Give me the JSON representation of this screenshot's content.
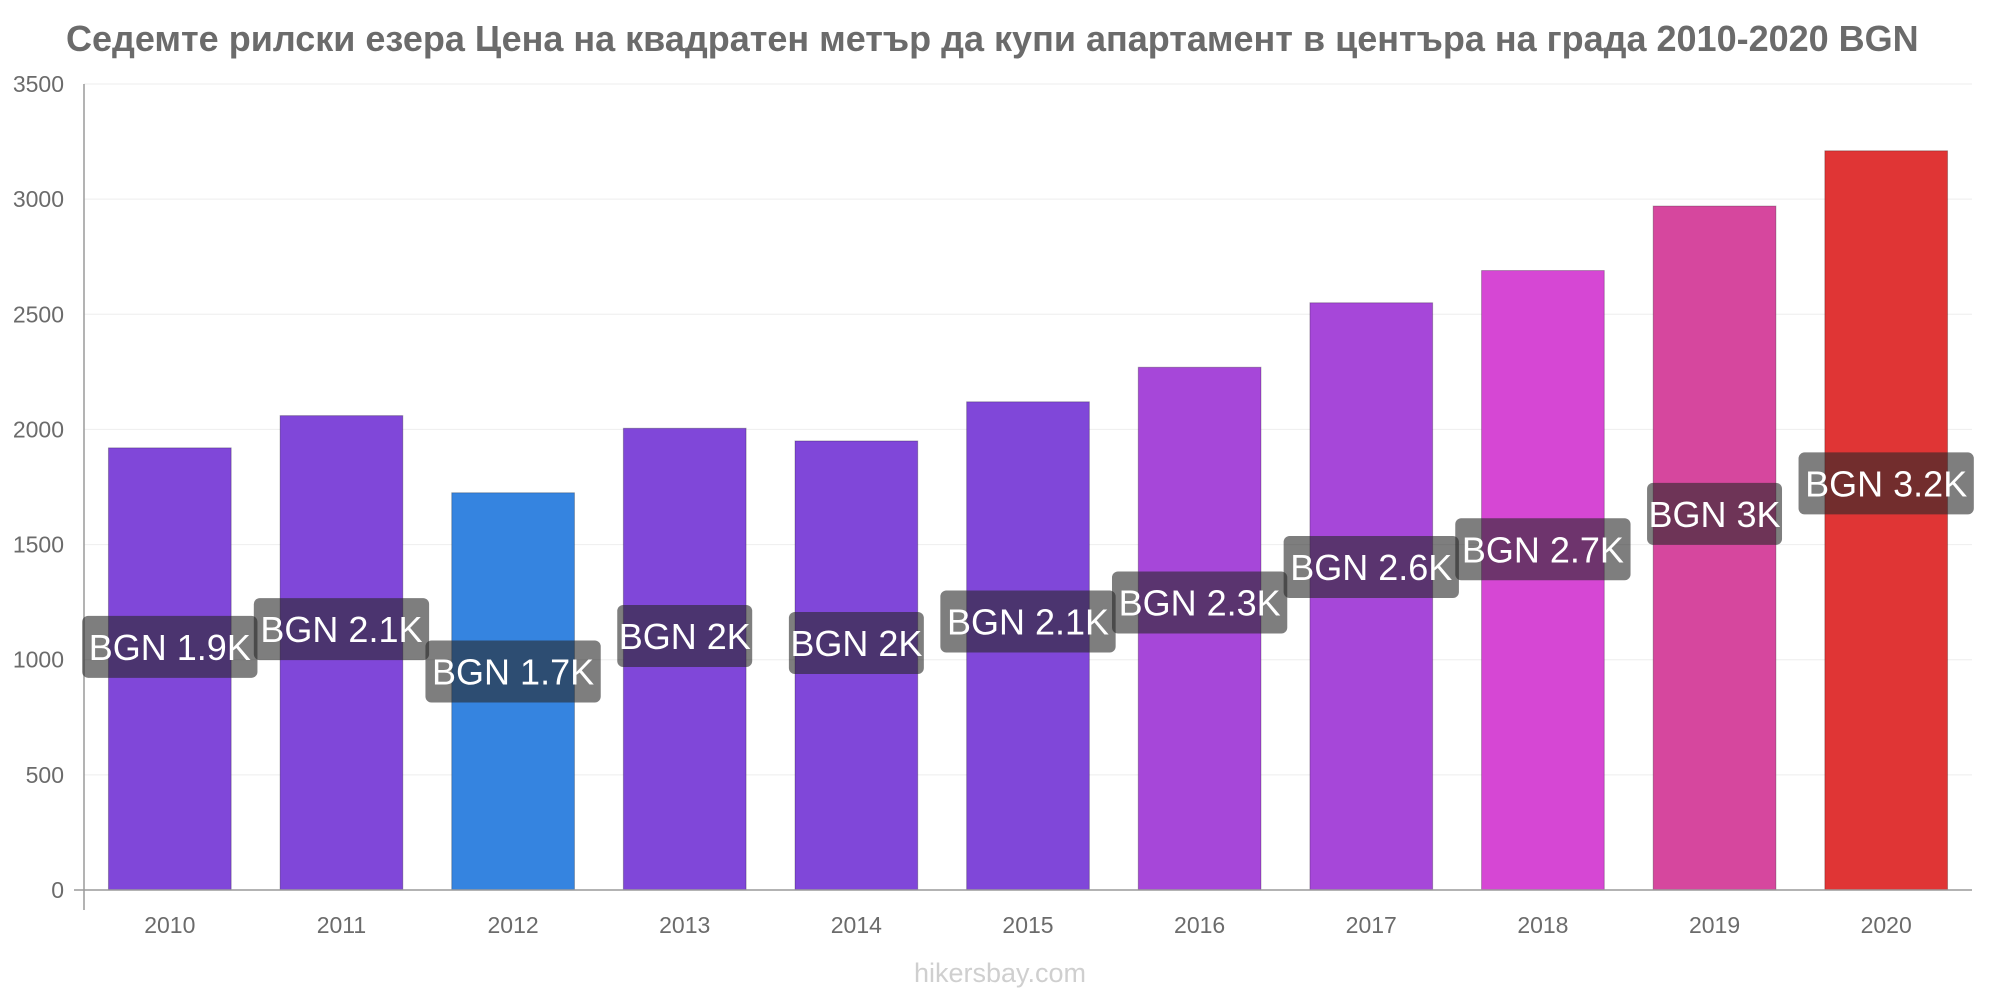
{
  "chart_data": {
    "type": "bar",
    "title": "Седемте рилски езера Цена на квадратен метър да купи апартамент в центъра на града 2010-2020 BGN",
    "categories": [
      "2010",
      "2011",
      "2012",
      "2013",
      "2014",
      "2015",
      "2016",
      "2017",
      "2018",
      "2019",
      "2020"
    ],
    "values": [
      1920,
      2060,
      1725,
      2005,
      1950,
      2120,
      2270,
      2550,
      2690,
      2970,
      3210
    ],
    "data_labels": [
      "BGN 1.9K",
      "BGN 2.1K",
      "BGN 1.7K",
      "BGN 2K",
      "BGN 2K",
      "BGN 2.1K",
      "BGN 2.3K",
      "BGN 2.6K",
      "BGN 2.7K",
      "BGN 3K",
      "BGN 3.2K"
    ],
    "bar_colors": [
      "#8047d9",
      "#8047d9",
      "#3584e0",
      "#8047d9",
      "#8047d9",
      "#8047d9",
      "#a647d9",
      "#a647d9",
      "#d647d4",
      "#d6479e",
      "#e03535"
    ],
    "yticks": [
      0,
      500,
      1000,
      1500,
      2000,
      2500,
      3000,
      3500
    ],
    "ylim": [
      0,
      3500
    ],
    "xlabel": "",
    "ylabel": "",
    "grid": true
  },
  "watermark": "hikersbay.com"
}
